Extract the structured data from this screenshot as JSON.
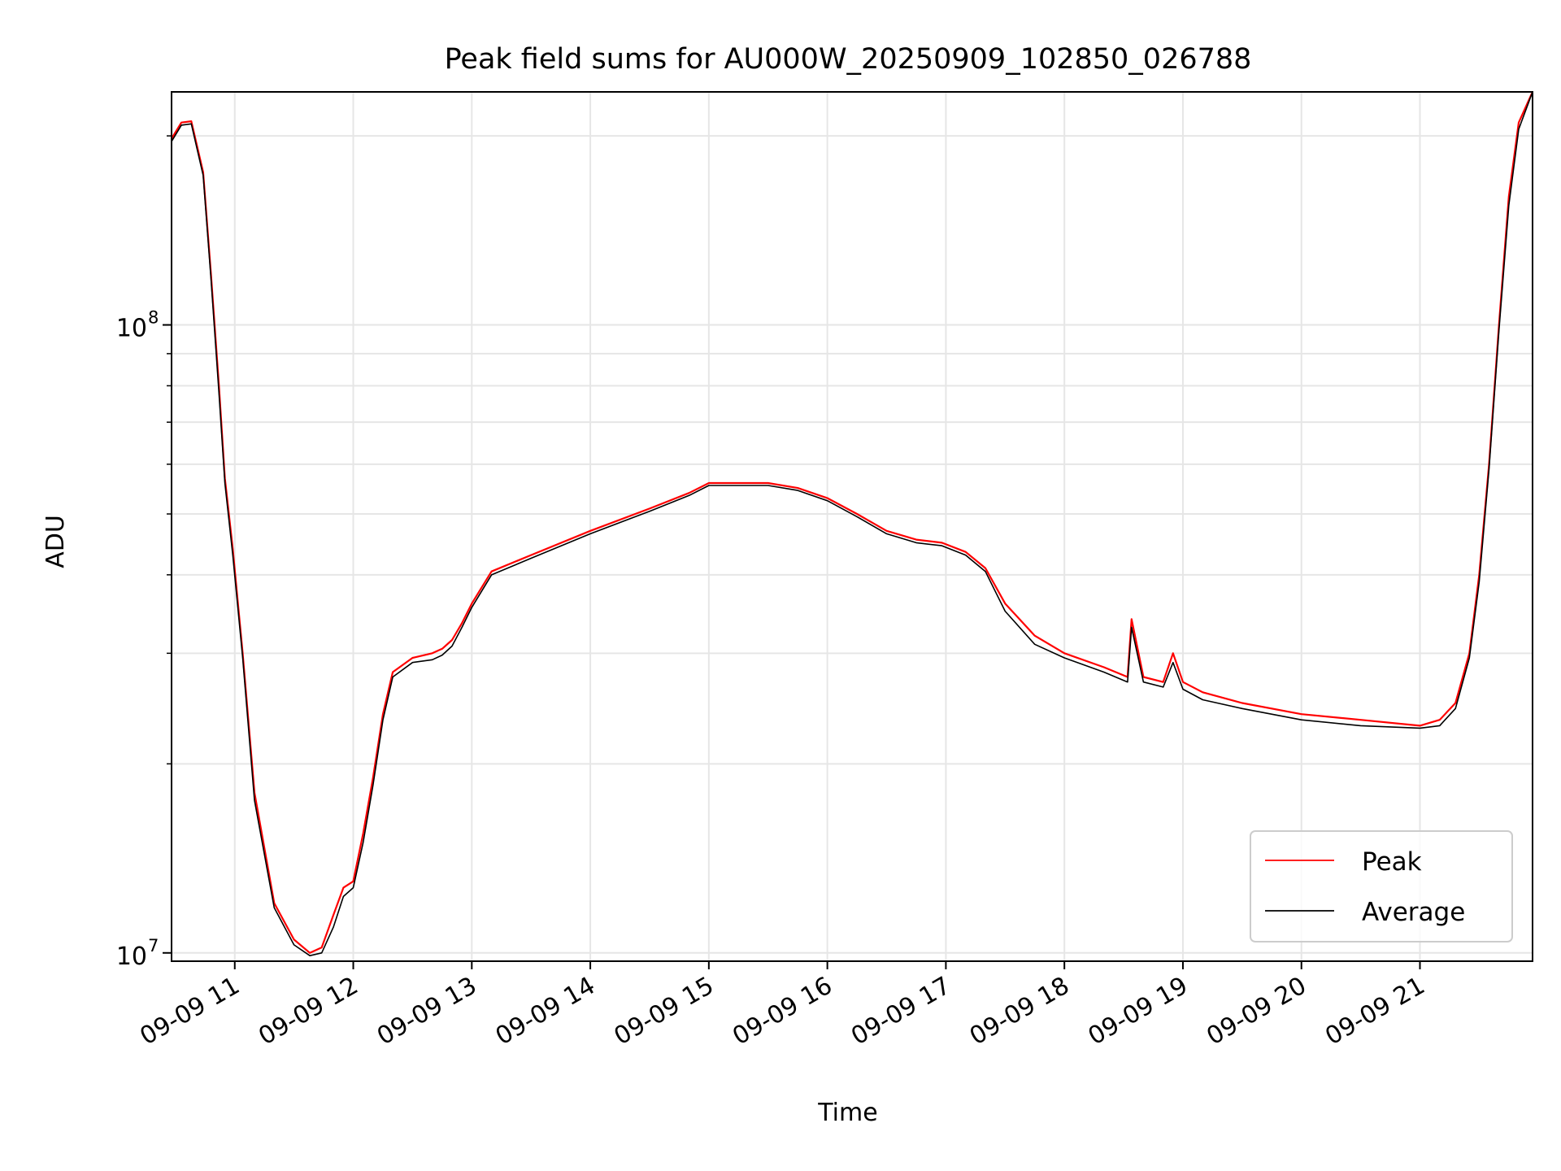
{
  "chart_data": {
    "type": "line",
    "title": "Peak field sums for AU000W_20250909_102850_026788",
    "xlabel": "Time",
    "ylabel": "ADU",
    "yscale": "log",
    "grid": true,
    "legend_position": "lower right",
    "xlim": [
      "09-09 10:28",
      "09-09 21:57"
    ],
    "ylim": [
      9700000.0,
      235000000.0
    ],
    "x_ticks": [
      "09-09 11",
      "09-09 12",
      "09-09 13",
      "09-09 14",
      "09-09 15",
      "09-09 16",
      "09-09 17",
      "09-09 18",
      "09-09 19",
      "09-09 20",
      "09-09 21"
    ],
    "y_ticks": [
      {
        "value": 10000000,
        "label": "10",
        "exp": "7"
      },
      {
        "value": 100000000,
        "label": "10",
        "exp": "8"
      }
    ],
    "series": [
      {
        "name": "Peak",
        "color": "#ff0000",
        "x": [
          "09-09 10:28",
          "09-09 10:33",
          "09-09 10:38",
          "09-09 10:44",
          "09-09 10:48",
          "09-09 10:52",
          "09-09 10:55",
          "09-09 10:59",
          "09-09 11:04",
          "09-09 11:10",
          "09-09 11:20",
          "09-09 11:30",
          "09-09 11:38",
          "09-09 11:44",
          "09-09 11:50",
          "09-09 11:55",
          "09-09 12:00",
          "09-09 12:05",
          "09-09 12:10",
          "09-09 12:15",
          "09-09 12:20",
          "09-09 12:30",
          "09-09 12:40",
          "09-09 12:45",
          "09-09 12:50",
          "09-09 12:55",
          "09-09 13:00",
          "09-09 13:10",
          "09-09 13:30",
          "09-09 14:00",
          "09-09 14:30",
          "09-09 14:50",
          "09-09 15:00",
          "09-09 15:30",
          "09-09 15:45",
          "09-09 16:00",
          "09-09 16:15",
          "09-09 16:30",
          "09-09 16:45",
          "09-09 16:58",
          "09-09 17:10",
          "09-09 17:20",
          "09-09 17:30",
          "09-09 17:45",
          "09-09 18:00",
          "09-09 18:20",
          "09-09 18:32",
          "09-09 18:34",
          "09-09 18:40",
          "09-09 18:50",
          "09-09 18:55",
          "09-09 19:00",
          "09-09 19:10",
          "09-09 19:30",
          "09-09 20:00",
          "09-09 20:30",
          "09-09 21:00",
          "09-09 21:10",
          "09-09 21:18",
          "09-09 21:25",
          "09-09 21:30",
          "09-09 21:35",
          "09-09 21:40",
          "09-09 21:45",
          "09-09 21:50",
          "09-09 21:57"
        ],
        "y": [
          198000000,
          210000000,
          211000000,
          175000000,
          120000000,
          80000000,
          57000000,
          44000000,
          30000000,
          18000000,
          12000000,
          10500000,
          10000000,
          10200000,
          11500000,
          12700000,
          13000000,
          15500000,
          19000000,
          24000000,
          28000000,
          29500000,
          30000000,
          30500000,
          31500000,
          33500000,
          36000000,
          40500000,
          43000000,
          47000000,
          51000000,
          54000000,
          56000000,
          56000000,
          55000000,
          53000000,
          50000000,
          47000000,
          45500000,
          45000000,
          43500000,
          41000000,
          36000000,
          32000000,
          30000000,
          28500000,
          27500000,
          34000000,
          27500000,
          27000000,
          30000000,
          27000000,
          26000000,
          25000000,
          24000000,
          23500000,
          23000000,
          23500000,
          25000000,
          30000000,
          40000000,
          60000000,
          100000000,
          160000000,
          210000000,
          240000000
        ]
      },
      {
        "name": "Average",
        "color": "#000000",
        "x": [
          "09-09 10:28",
          "09-09 10:33",
          "09-09 10:38",
          "09-09 10:44",
          "09-09 10:48",
          "09-09 10:52",
          "09-09 10:55",
          "09-09 10:59",
          "09-09 11:04",
          "09-09 11:10",
          "09-09 11:20",
          "09-09 11:30",
          "09-09 11:38",
          "09-09 11:44",
          "09-09 11:50",
          "09-09 11:55",
          "09-09 12:00",
          "09-09 12:05",
          "09-09 12:10",
          "09-09 12:15",
          "09-09 12:20",
          "09-09 12:30",
          "09-09 12:40",
          "09-09 12:45",
          "09-09 12:50",
          "09-09 12:55",
          "09-09 13:00",
          "09-09 13:10",
          "09-09 13:30",
          "09-09 14:00",
          "09-09 14:30",
          "09-09 14:50",
          "09-09 15:00",
          "09-09 15:30",
          "09-09 15:45",
          "09-09 16:00",
          "09-09 16:15",
          "09-09 16:30",
          "09-09 16:45",
          "09-09 16:58",
          "09-09 17:10",
          "09-09 17:20",
          "09-09 17:30",
          "09-09 17:45",
          "09-09 18:00",
          "09-09 18:20",
          "09-09 18:32",
          "09-09 18:34",
          "09-09 18:40",
          "09-09 18:50",
          "09-09 18:55",
          "09-09 19:00",
          "09-09 19:10",
          "09-09 19:30",
          "09-09 20:00",
          "09-09 20:30",
          "09-09 21:00",
          "09-09 21:10",
          "09-09 21:18",
          "09-09 21:25",
          "09-09 21:30",
          "09-09 21:35",
          "09-09 21:40",
          "09-09 21:45",
          "09-09 21:50",
          "09-09 21:57"
        ],
        "y": [
          196000000,
          208000000,
          209000000,
          173000000,
          118000000,
          78000000,
          56000000,
          43000000,
          29500000,
          17500000,
          11800000,
          10300000,
          9900000,
          10000000,
          11000000,
          12300000,
          12700000,
          15000000,
          18500000,
          23500000,
          27500000,
          29000000,
          29300000,
          29800000,
          30800000,
          33000000,
          35500000,
          40000000,
          42500000,
          46500000,
          50500000,
          53500000,
          55500000,
          55500000,
          54500000,
          52500000,
          49500000,
          46500000,
          45000000,
          44500000,
          43000000,
          40500000,
          35000000,
          31000000,
          29500000,
          28000000,
          27000000,
          33000000,
          27000000,
          26500000,
          29000000,
          26300000,
          25300000,
          24500000,
          23500000,
          23000000,
          22800000,
          23000000,
          24500000,
          29500000,
          39000000,
          59000000,
          98000000,
          155000000,
          205000000,
          240000000
        ]
      }
    ]
  }
}
